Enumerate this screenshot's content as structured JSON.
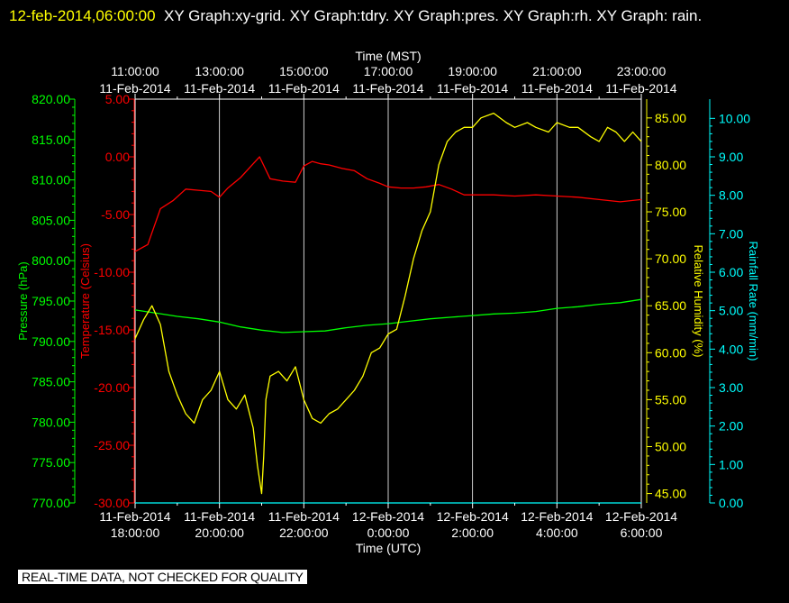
{
  "header": {
    "timestamp": "12-feb-2014,06:00:00",
    "graphs": "XY Graph:xy-grid.  XY Graph:tdry.  XY Graph:pres.  XY Graph:rh.  XY Graph: rain."
  },
  "footer": {
    "note": "REAL-TIME DATA, NOT CHECKED FOR QUALITY"
  },
  "colors": {
    "background": "#000000",
    "temperature": "#ff0000",
    "pressure": "#00ff00",
    "humidity": "#ffff00",
    "rain": "#00ffff",
    "grid": "#ffffff"
  },
  "chart_data": {
    "type": "line",
    "grid": true,
    "x_top": {
      "label": "Time (MST)",
      "tick_time": [
        "11:00:00",
        "13:00:00",
        "15:00:00",
        "17:00:00",
        "19:00:00",
        "21:00:00",
        "23:00:00"
      ],
      "tick_date": [
        "11-Feb-2014",
        "11-Feb-2014",
        "11-Feb-2014",
        "11-Feb-2014",
        "11-Feb-2014",
        "11-Feb-2014",
        "11-Feb-2014"
      ]
    },
    "x_bottom": {
      "label": "Time (UTC)",
      "tick_date": [
        "11-Feb-2014",
        "11-Feb-2014",
        "11-Feb-2014",
        "12-Feb-2014",
        "12-Feb-2014",
        "12-Feb-2014",
        "12-Feb-2014"
      ],
      "tick_time": [
        "18:00:00",
        "20:00:00",
        "22:00:00",
        "0:00:00",
        "2:00:00",
        "4:00:00",
        "6:00:00"
      ]
    },
    "x_hours_utc": [
      18,
      20,
      22,
      24,
      26,
      28,
      30
    ],
    "xlim": [
      18,
      30
    ],
    "axes": {
      "pressure": {
        "label": "Pressure (hPa)",
        "ylim": [
          770,
          820
        ],
        "ticks": [
          "770.00",
          "775.00",
          "780.00",
          "785.00",
          "790.00",
          "795.00",
          "800.00",
          "805.00",
          "810.00",
          "815.00",
          "820.00"
        ]
      },
      "temperature": {
        "label": "Temperature (Celsius)",
        "ylim": [
          -30,
          5
        ],
        "ticks": [
          "-30.00",
          "-25.00",
          "-20.00",
          "-15.00",
          "-10.00",
          "-5.00",
          "0.00",
          "5.00"
        ]
      },
      "humidity": {
        "label": "Relative Humidity (%)",
        "ylim": [
          44,
          87
        ],
        "ticks": [
          "45.00",
          "50.00",
          "55.00",
          "60.00",
          "65.00",
          "70.00",
          "75.00",
          "80.00",
          "85.00"
        ]
      },
      "rain": {
        "label": "Rainfall Rate (mm/min)",
        "ylim": [
          0,
          10.5
        ],
        "ticks": [
          "0.00",
          "1.00",
          "2.00",
          "3.00",
          "4.00",
          "5.00",
          "6.00",
          "7.00",
          "8.00",
          "9.00",
          "10.00"
        ]
      }
    },
    "series": [
      {
        "name": "tdry",
        "axis": "temperature",
        "x": [
          18.0,
          18.3,
          18.6,
          18.9,
          19.2,
          19.5,
          19.8,
          20.0,
          20.2,
          20.5,
          20.8,
          20.95,
          21.2,
          21.5,
          21.8,
          22.0,
          22.2,
          22.4,
          22.6,
          22.9,
          23.2,
          23.5,
          23.8,
          24.0,
          24.3,
          24.6,
          24.9,
          25.2,
          25.5,
          25.8,
          26.0,
          26.5,
          27.0,
          27.5,
          28.0,
          28.5,
          29.0,
          29.5,
          30.0
        ],
        "y": [
          -8.2,
          -7.6,
          -4.5,
          -3.8,
          -2.8,
          -2.9,
          -3.0,
          -3.5,
          -2.7,
          -1.8,
          -0.6,
          0.0,
          -1.9,
          -2.1,
          -2.2,
          -0.8,
          -0.4,
          -0.6,
          -0.7,
          -1.0,
          -1.2,
          -1.9,
          -2.3,
          -2.6,
          -2.7,
          -2.7,
          -2.6,
          -2.4,
          -2.8,
          -3.3,
          -3.3,
          -3.3,
          -3.4,
          -3.3,
          -3.4,
          -3.5,
          -3.7,
          -3.9,
          -3.7
        ]
      },
      {
        "name": "pres",
        "axis": "pressure",
        "x": [
          18.0,
          18.5,
          19.0,
          19.5,
          20.0,
          20.5,
          21.0,
          21.5,
          22.0,
          22.5,
          23.0,
          23.5,
          24.0,
          24.5,
          25.0,
          25.5,
          26.0,
          26.5,
          27.0,
          27.5,
          28.0,
          28.5,
          29.0,
          29.5,
          30.0
        ],
        "y": [
          793.9,
          793.5,
          793.1,
          792.8,
          792.4,
          791.8,
          791.4,
          791.1,
          791.2,
          791.3,
          791.7,
          792.0,
          792.2,
          792.5,
          792.8,
          793.0,
          793.2,
          793.4,
          793.5,
          793.7,
          794.1,
          794.3,
          794.6,
          794.8,
          795.2
        ]
      },
      {
        "name": "rh",
        "axis": "humidity",
        "x": [
          18.0,
          18.2,
          18.4,
          18.6,
          18.8,
          19.0,
          19.2,
          19.4,
          19.6,
          19.8,
          20.0,
          20.2,
          20.4,
          20.6,
          20.8,
          20.9,
          21.0,
          21.05,
          21.1,
          21.2,
          21.4,
          21.6,
          21.8,
          22.0,
          22.2,
          22.4,
          22.6,
          22.8,
          23.0,
          23.2,
          23.4,
          23.6,
          23.8,
          24.0,
          24.2,
          24.4,
          24.6,
          24.8,
          25.0,
          25.2,
          25.4,
          25.6,
          25.8,
          26.0,
          26.2,
          26.5,
          26.8,
          27.0,
          27.3,
          27.5,
          27.8,
          28.0,
          28.3,
          28.5,
          28.8,
          29.0,
          29.2,
          29.4,
          29.6,
          29.8,
          30.0
        ],
        "y": [
          61.5,
          63.5,
          65.0,
          63.0,
          58.0,
          55.5,
          53.5,
          52.5,
          55.0,
          56.0,
          58.0,
          55.0,
          54.0,
          55.5,
          52.0,
          48.0,
          45.0,
          49.0,
          55.0,
          57.5,
          58.0,
          57.0,
          58.5,
          55.0,
          53.0,
          52.5,
          53.5,
          54.0,
          55.0,
          56.0,
          57.5,
          60.0,
          60.5,
          62.0,
          62.5,
          66.0,
          70.0,
          73.0,
          75.0,
          80.0,
          82.5,
          83.5,
          84.0,
          84.0,
          85.0,
          85.5,
          84.5,
          84.0,
          84.5,
          84.0,
          83.5,
          84.5,
          84.0,
          84.0,
          83.0,
          82.5,
          84.0,
          83.5,
          82.5,
          83.5,
          82.5
        ]
      },
      {
        "name": "rain",
        "axis": "rain",
        "x": [
          18,
          30
        ],
        "y": [
          0,
          0
        ]
      }
    ]
  }
}
